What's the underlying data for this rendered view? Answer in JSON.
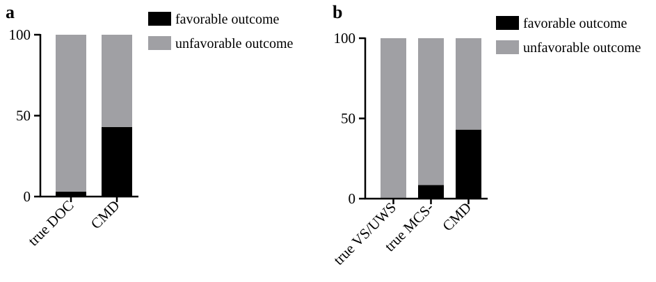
{
  "chart_data": [
    {
      "panel": "a",
      "type": "bar",
      "stacked": true,
      "categories": [
        "true DOC",
        "CMD"
      ],
      "series": [
        {
          "name": "favorable outcome",
          "color": "#000000",
          "values": [
            3,
            43
          ]
        },
        {
          "name": "unfavorable outcome",
          "color": "#a0a0a4",
          "values": [
            97,
            57
          ]
        }
      ],
      "yticks": [
        "0",
        "50",
        "100"
      ],
      "ylim": [
        0,
        100
      ],
      "legend_position": "top-right"
    },
    {
      "panel": "b",
      "type": "bar",
      "stacked": true,
      "categories": [
        "true VS/UWS",
        "true MCS-",
        "CMD"
      ],
      "series": [
        {
          "name": "favorable outcome",
          "color": "#000000",
          "values": [
            0,
            8.5,
            43
          ]
        },
        {
          "name": "unfavorable outcome",
          "color": "#a0a0a4",
          "values": [
            100,
            91.5,
            57
          ]
        }
      ],
      "yticks": [
        "0",
        "50",
        "100"
      ],
      "ylim": [
        0,
        100
      ],
      "legend_position": "top-right"
    }
  ]
}
